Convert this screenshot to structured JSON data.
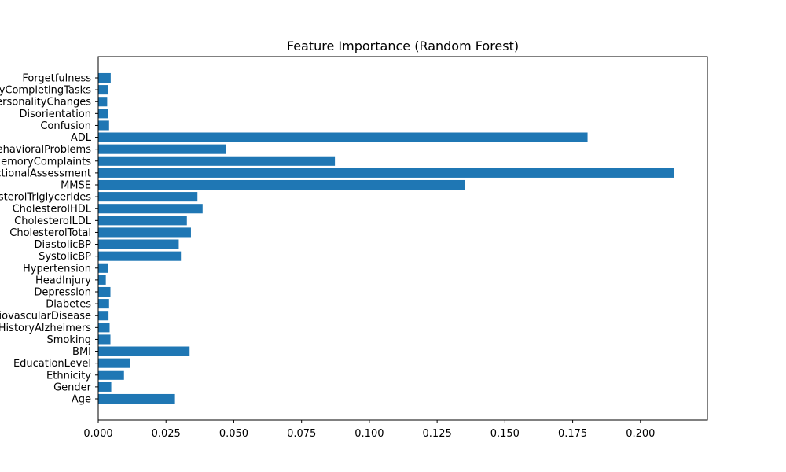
{
  "chart_data": {
    "type": "bar",
    "orientation": "horizontal",
    "title": "Feature Importance (Random Forest)",
    "xlabel": "",
    "ylabel": "",
    "xlim": [
      0,
      0.2247
    ],
    "grid": false,
    "bar_color": "#1f77b4",
    "x_ticks": [
      {
        "value": 0,
        "label": "0.000"
      },
      {
        "value": 0.025,
        "label": "0.025"
      },
      {
        "value": 0.05,
        "label": "0.050"
      },
      {
        "value": 0.075,
        "label": "0.075"
      },
      {
        "value": 0.1,
        "label": "0.100"
      },
      {
        "value": 0.125,
        "label": "0.125"
      },
      {
        "value": 0.15,
        "label": "0.150"
      },
      {
        "value": 0.175,
        "label": "0.175"
      },
      {
        "value": 0.2,
        "label": "0.200"
      }
    ],
    "categories": [
      "Age",
      "Gender",
      "Ethnicity",
      "EducationLevel",
      "BMI",
      "Smoking",
      "FamilyHistoryAlzheimers",
      "CardiovascularDisease",
      "Diabetes",
      "Depression",
      "HeadInjury",
      "Hypertension",
      "SystolicBP",
      "DiastolicBP",
      "CholesterolTotal",
      "CholesterolLDL",
      "CholesterolHDL",
      "CholesterolTriglycerides",
      "MMSE",
      "FunctionalAssessment",
      "MemoryComplaints",
      "BehavioralProblems",
      "ADL",
      "Confusion",
      "Disorientation",
      "PersonalityChanges",
      "DifficultyCompletingTasks",
      "Forgetfulness"
    ],
    "values": [
      0.0283,
      0.0048,
      0.0095,
      0.0118,
      0.0337,
      0.0045,
      0.0042,
      0.0038,
      0.004,
      0.0045,
      0.0028,
      0.0037,
      0.0305,
      0.0297,
      0.0342,
      0.0327,
      0.0385,
      0.0366,
      0.1352,
      0.2125,
      0.0873,
      0.0472,
      0.1805,
      0.004,
      0.0037,
      0.0033,
      0.0036,
      0.0046
    ]
  }
}
